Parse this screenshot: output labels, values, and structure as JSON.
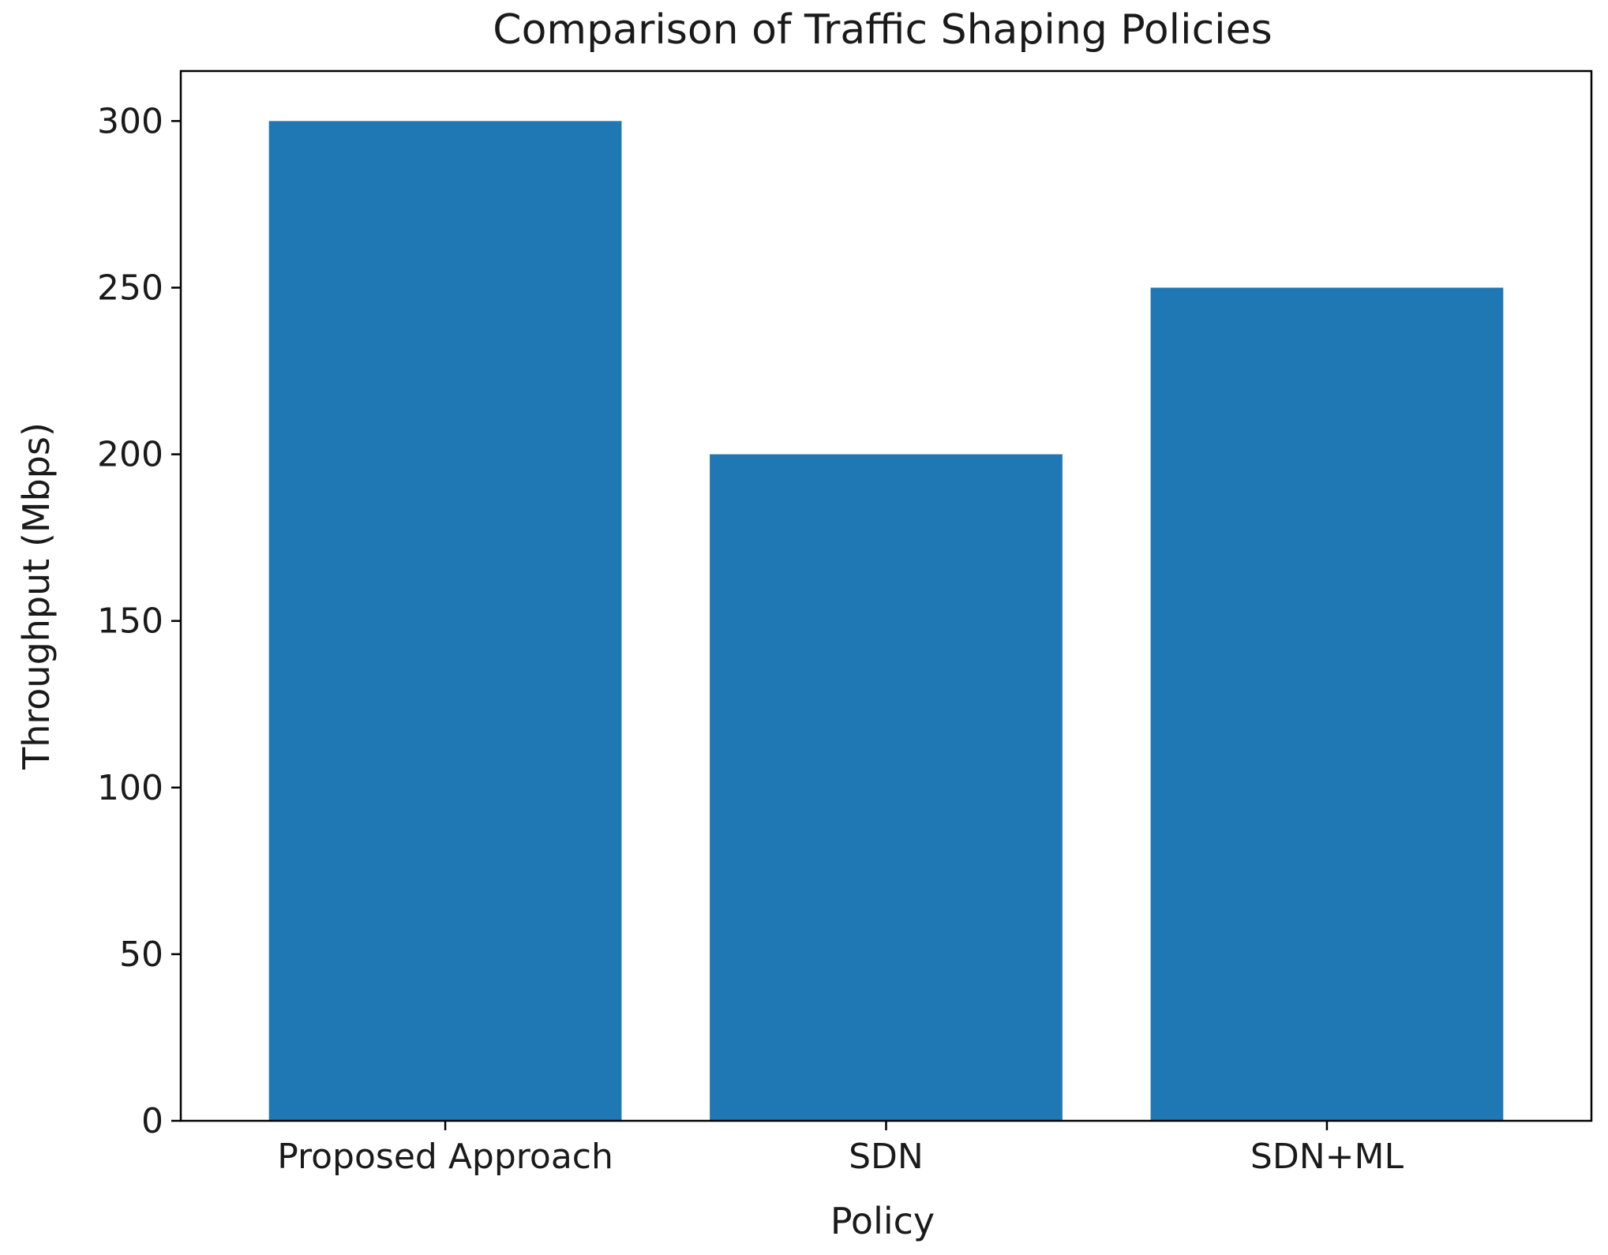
{
  "chart_data": {
    "type": "bar",
    "title": "Comparison of Traffic Shaping Policies",
    "xlabel": "Policy",
    "ylabel": "Throughput (Mbps)",
    "categories": [
      "Proposed Approach",
      "SDN",
      "SDN+ML"
    ],
    "values": [
      300,
      200,
      250
    ],
    "ylim": [
      0,
      315
    ],
    "yticks": [
      0,
      50,
      100,
      150,
      200,
      250,
      300
    ],
    "bar_color": "#1f77b4",
    "grid": false,
    "legend": false
  }
}
